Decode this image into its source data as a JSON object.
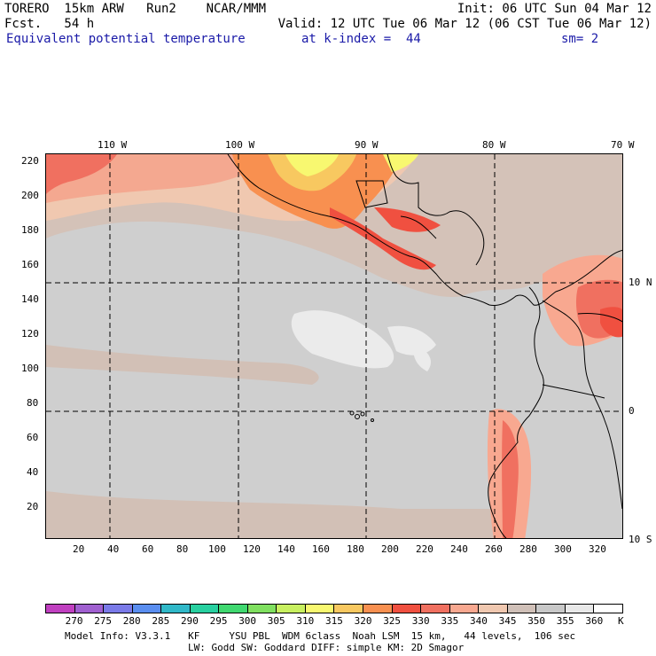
{
  "header": {
    "line1_left": "TORERO  15km ARW   Run2    NCAR/MMM",
    "line1_right": "Init: 06 UTC Sun 04 Mar 12",
    "line2_left": "Fcst.   54 h",
    "line2_right": "Valid: 12 UTC Tue 06 Mar 12 (06 CST Tue 06 Mar 12)",
    "line3_field": "Equivalent potential temperature",
    "line3_level": "at k-index =  44",
    "line3_sm": "sm= 2"
  },
  "axes": {
    "top_lon": [
      "110 W",
      "100 W",
      "90 W",
      "80 W",
      "70 W"
    ],
    "right_lat": [
      "10 N",
      "0",
      "10 S"
    ],
    "left_y": [
      "220",
      "200",
      "180",
      "160",
      "140",
      "120",
      "100",
      "80",
      "60",
      "40",
      "20"
    ],
    "bottom_x": [
      "20",
      "40",
      "60",
      "80",
      "100",
      "120",
      "140",
      "160",
      "180",
      "200",
      "220",
      "240",
      "260",
      "280",
      "300",
      "320"
    ]
  },
  "colorbar": {
    "unit": "K",
    "labels": [
      "270",
      "275",
      "280",
      "285",
      "290",
      "295",
      "300",
      "305",
      "310",
      "315",
      "320",
      "325",
      "330",
      "335",
      "340",
      "345",
      "350",
      "355",
      "360"
    ],
    "colors": [
      "#c040c0",
      "#a060d0",
      "#7a7ae8",
      "#5a8ef0",
      "#30b8c8",
      "#28d0a0",
      "#40d870",
      "#80e060",
      "#c8f060",
      "#f8f870",
      "#f8c860",
      "#f89050",
      "#f05040",
      "#f07060",
      "#f8a890",
      "#f0c8b0",
      "#d0c0b8",
      "#c8c8c8",
      "#e8e8e8",
      "#ffffff"
    ]
  },
  "footer": {
    "line1": "Model Info: V3.3.1   KF     YSU PBL  WDM 6class  Noah LSM  15 km,   44 levels,  106 sec",
    "line2": "LW: Godd SW: Goddard DIFF: simple KM: 2D Smagor"
  }
}
